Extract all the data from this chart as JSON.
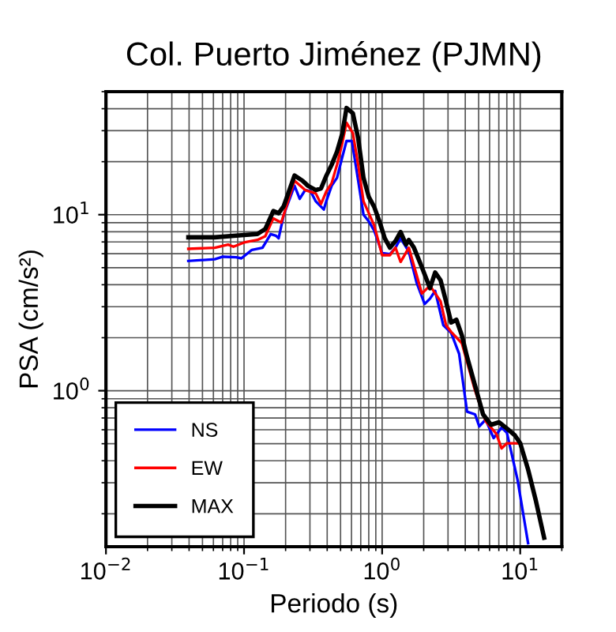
{
  "chart_data": {
    "type": "line",
    "title": "Col. Puerto Jiménez (PJMN)",
    "xlabel": "Periodo (s)",
    "ylabel": "PSA (cm/s²)",
    "log": "xy",
    "grid": true,
    "legend": "bottom left",
    "line_style": "solid",
    "marker": "none",
    "xlim": [
      0.01,
      20
    ],
    "ylim": [
      0.13,
      50
    ],
    "xticks": [
      {
        "value": 0.01,
        "label": "10$^{−2}$"
      },
      {
        "value": 0.1,
        "label": "10$^{−1}$"
      },
      {
        "value": 1,
        "label": "10$^{0}$"
      },
      {
        "value": 10,
        "label": "10$^{1}$"
      }
    ],
    "yticks": [
      {
        "value": 1,
        "label": "10$^{0}$"
      },
      {
        "value": 10,
        "label": "10$^{1}$"
      }
    ],
    "series": [
      {
        "name": "NS",
        "color": "#0000ff",
        "x": [
          0.0395,
          0.0614,
          0.0702,
          0.0875,
          0.0957,
          0.114,
          0.136,
          0.156,
          0.17,
          0.178,
          0.194,
          0.232,
          0.253,
          0.277,
          0.303,
          0.331,
          0.378,
          0.395,
          0.431,
          0.471,
          0.515,
          0.552,
          0.604,
          0.671,
          0.733,
          0.801,
          0.875,
          1.0,
          1.14,
          1.25,
          1.36,
          1.56,
          1.78,
          2.03,
          2.22,
          2.42,
          2.77,
          3.16,
          3.61,
          4.12,
          4.71,
          5.05,
          5.62,
          6.42,
          7.33,
          8.01,
          9.57,
          11.4
        ],
        "values": [
          5.46,
          5.58,
          5.77,
          5.73,
          5.65,
          6.31,
          6.49,
          7.76,
          7.6,
          7.34,
          10.0,
          14.6,
          12.3,
          13.8,
          13.6,
          11.9,
          10.7,
          12.0,
          14.6,
          16.2,
          21.3,
          26.2,
          26.2,
          15.6,
          10.0,
          9.15,
          8.13,
          6.05,
          5.97,
          6.49,
          7.34,
          6.18,
          4.09,
          3.11,
          3.33,
          3.69,
          2.36,
          2.13,
          1.62,
          0.76,
          0.734,
          0.627,
          0.685,
          0.538,
          0.618,
          0.577,
          0.311,
          0.136
        ]
      },
      {
        "name": "EW",
        "color": "#ff0000",
        "x": [
          0.0395,
          0.0614,
          0.0767,
          0.0838,
          0.1,
          0.125,
          0.1425,
          0.163,
          0.186,
          0.232,
          0.277,
          0.331,
          0.361,
          0.395,
          0.431,
          0.471,
          0.515,
          0.552,
          0.614,
          0.671,
          0.733,
          0.801,
          0.875,
          1.0,
          1.14,
          1.25,
          1.36,
          1.56,
          1.94,
          2.22,
          2.65,
          2.9,
          3.16,
          3.78,
          4.71,
          5.62,
          6.71,
          7.33,
          8.01,
          9.16,
          10.0
        ],
        "values": [
          6.4,
          6.49,
          6.76,
          6.58,
          6.95,
          7.19,
          7.55,
          9.53,
          9.02,
          15.6,
          13.8,
          13.2,
          11.5,
          13.6,
          15.1,
          19.2,
          25.6,
          33.3,
          29.0,
          19.2,
          11.9,
          10.2,
          8.71,
          5.89,
          5.89,
          6.49,
          5.39,
          6.49,
          3.57,
          3.95,
          3.22,
          2.36,
          2.16,
          1.86,
          1.0,
          0.671,
          0.569,
          0.47,
          0.503,
          0.503,
          0.503
        ]
      },
      {
        "name": "MAX",
        "color": "#000000",
        "x": [
          0.0395,
          0.0614,
          0.0957,
          0.125,
          0.1425,
          0.163,
          0.178,
          0.194,
          0.232,
          0.265,
          0.29,
          0.331,
          0.361,
          0.395,
          0.431,
          0.471,
          0.515,
          0.552,
          0.614,
          0.671,
          0.733,
          0.801,
          0.875,
          0.957,
          1.045,
          1.14,
          1.25,
          1.36,
          1.49,
          1.56,
          1.7,
          1.94,
          2.22,
          2.42,
          2.65,
          2.9,
          3.16,
          3.45,
          3.78,
          4.12,
          4.71,
          5.38,
          6.14,
          7.02,
          8.01,
          9.16,
          10.0,
          11.4,
          13.0,
          14.9
        ],
        "values": [
          7.44,
          7.44,
          7.65,
          7.76,
          8.3,
          10.5,
          10.2,
          11.2,
          16.7,
          15.6,
          14.6,
          13.8,
          14.1,
          16.7,
          19.2,
          22.8,
          29.0,
          40.4,
          37.7,
          27.1,
          16.2,
          12.6,
          11.1,
          9.15,
          7.34,
          6.49,
          7.09,
          7.97,
          6.76,
          7.19,
          6.49,
          5.03,
          3.82,
          4.7,
          4.24,
          3.22,
          2.44,
          2.53,
          2.06,
          1.56,
          1.07,
          0.734,
          0.64,
          0.662,
          0.61,
          0.557,
          0.503,
          0.357,
          0.236,
          0.146
        ]
      }
    ]
  }
}
